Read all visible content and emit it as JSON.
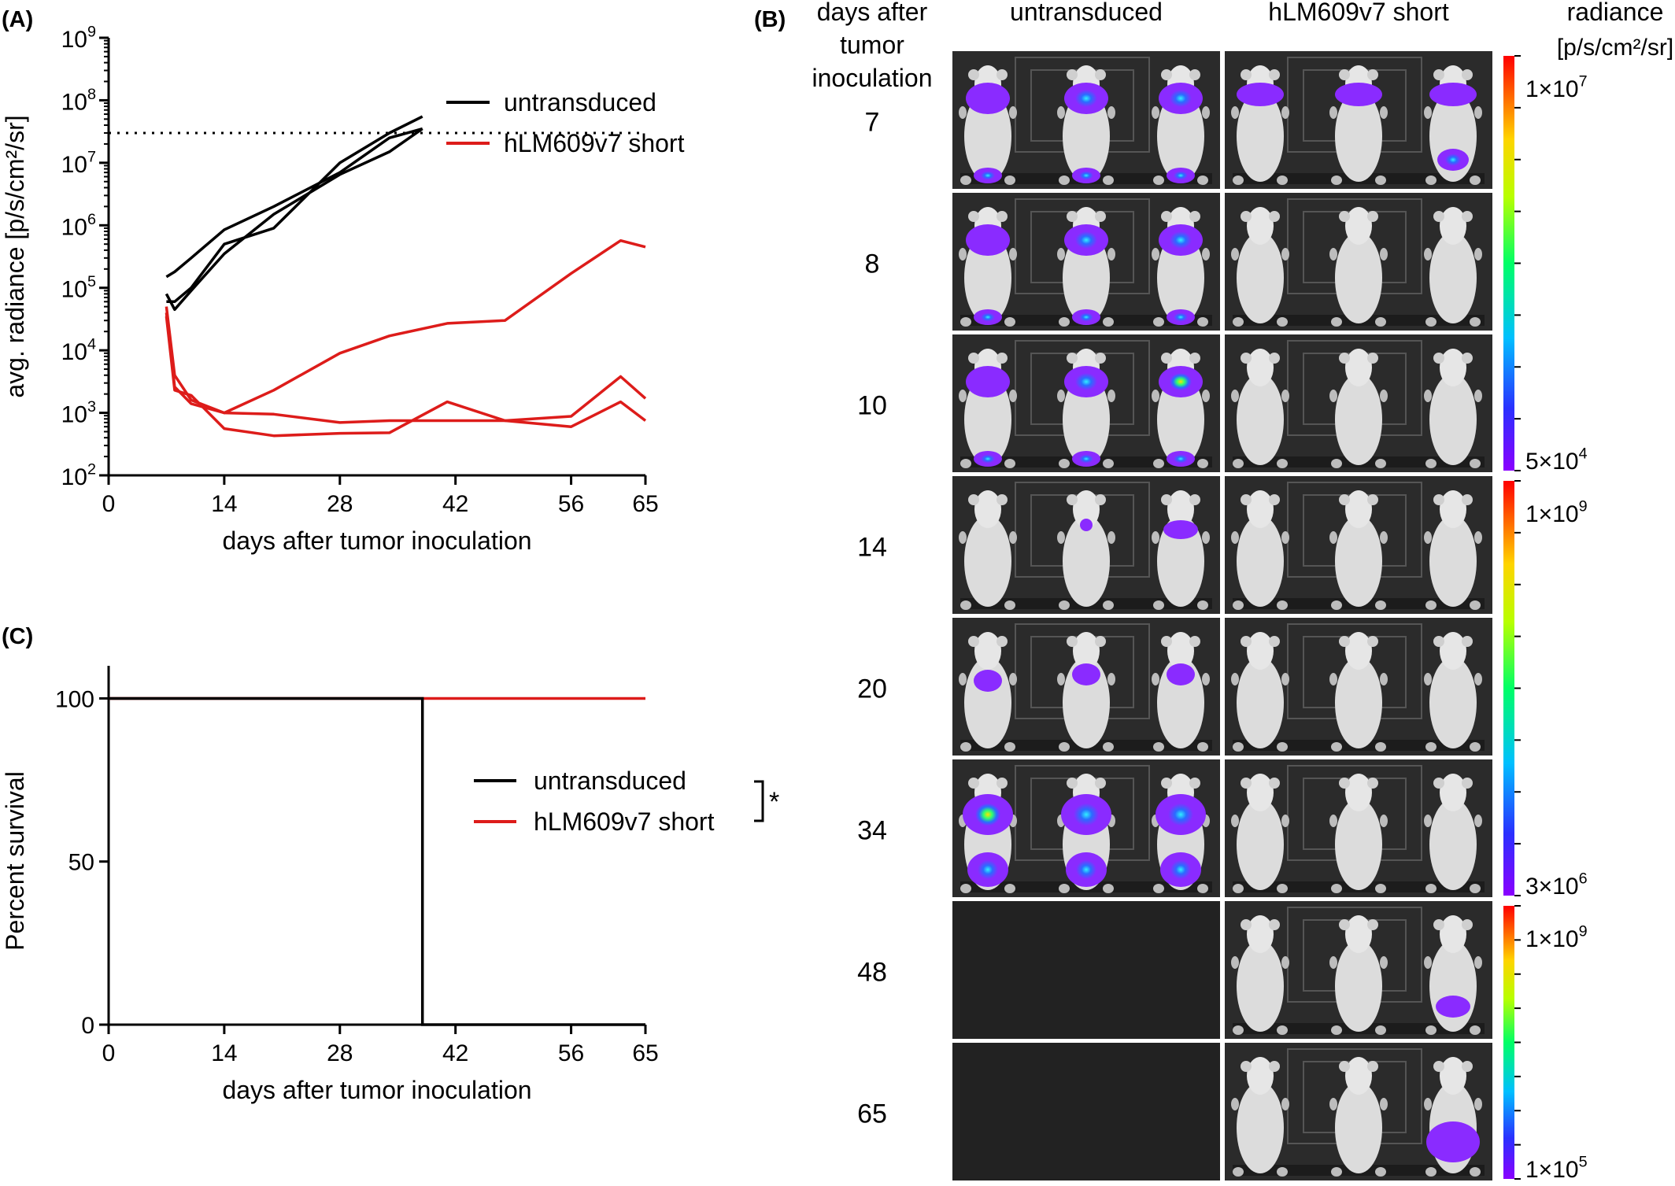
{
  "panels": {
    "a": "(A)",
    "b": "(B)",
    "c": "(C)"
  },
  "colors": {
    "untransduced": "#000000",
    "short": "#dd1c1a",
    "image_bg": "#222222",
    "frame": "#2b2b2b"
  },
  "chart_data": [
    {
      "type": "line",
      "panel": "(A)",
      "xlabel": "days after tumor inoculation",
      "ylabel": "avg. radiance  [p/s/cm²/sr]",
      "xticks": [
        "0",
        "14",
        "28",
        "42",
        "56",
        "65"
      ],
      "xlim": [
        0,
        65
      ],
      "yscale": "log",
      "ylim": [
        100,
        1000000000
      ],
      "yticks": [
        {
          "value": 100,
          "base": "10",
          "exp": "2"
        },
        {
          "value": 1000,
          "base": "10",
          "exp": "3"
        },
        {
          "value": 10000,
          "base": "10",
          "exp": "4"
        },
        {
          "value": 100000,
          "base": "10",
          "exp": "5"
        },
        {
          "value": 1000000,
          "base": "10",
          "exp": "6"
        },
        {
          "value": 10000000,
          "base": "10",
          "exp": "7"
        },
        {
          "value": 100000000,
          "base": "10",
          "exp": "8"
        },
        {
          "value": 1000000000,
          "base": "10",
          "exp": "9"
        }
      ],
      "threshold": 30000000,
      "legend": [
        {
          "label": "untransduced",
          "color": "#000000"
        },
        {
          "label": "hLM609v7 short",
          "color": "#dd1c1a"
        }
      ],
      "legend_position": "top-right",
      "series": [
        {
          "group": "untransduced",
          "color": "#000000",
          "points": [
            [
              7,
              80000
            ],
            [
              8,
              45000
            ],
            [
              10,
              90000
            ],
            [
              14,
              350000
            ],
            [
              20,
              1500000
            ],
            [
              28,
              6500000
            ],
            [
              34,
              15000000
            ],
            [
              38,
              35000000
            ]
          ]
        },
        {
          "group": "untransduced",
          "color": "#000000",
          "points": [
            [
              7,
              150000
            ],
            [
              8,
              180000
            ],
            [
              10,
              300000
            ],
            [
              14,
              850000
            ],
            [
              20,
              2000000
            ],
            [
              28,
              7000000
            ],
            [
              34,
              25000000
            ],
            [
              38,
              35000000
            ]
          ]
        },
        {
          "group": "untransduced",
          "color": "#000000",
          "points": [
            [
              7,
              60000
            ],
            [
              8,
              60000
            ],
            [
              10,
              100000
            ],
            [
              14,
              500000
            ],
            [
              20,
              900000
            ],
            [
              28,
              10000000
            ],
            [
              34,
              30000000
            ],
            [
              38,
              55000000
            ]
          ]
        },
        {
          "group": "hLM609v7 short",
          "color": "#dd1c1a",
          "points": [
            [
              7,
              50000
            ],
            [
              8,
              4000
            ],
            [
              10,
              1600
            ],
            [
              14,
              1000
            ],
            [
              20,
              2300
            ],
            [
              28,
              9000
            ],
            [
              34,
              17000
            ],
            [
              41,
              27000
            ],
            [
              48,
              30000
            ],
            [
              56,
              170000
            ],
            [
              62,
              570000
            ],
            [
              65,
              450000
            ]
          ]
        },
        {
          "group": "hLM609v7 short",
          "color": "#dd1c1a",
          "points": [
            [
              7,
              40000
            ],
            [
              8,
              2600
            ],
            [
              10,
              1400
            ],
            [
              14,
              1000
            ],
            [
              20,
              950
            ],
            [
              28,
              700
            ],
            [
              34,
              750
            ],
            [
              41,
              750
            ],
            [
              48,
              750
            ],
            [
              56,
              600
            ],
            [
              62,
              1500
            ],
            [
              65,
              750
            ]
          ]
        },
        {
          "group": "hLM609v7 short",
          "color": "#dd1c1a",
          "points": [
            [
              7,
              35000
            ],
            [
              8,
              2300
            ],
            [
              10,
              1900
            ],
            [
              14,
              560
            ],
            [
              20,
              430
            ],
            [
              28,
              470
            ],
            [
              34,
              480
            ],
            [
              41,
              1500
            ],
            [
              48,
              750
            ],
            [
              56,
              880
            ],
            [
              62,
              3800
            ],
            [
              65,
              1700
            ]
          ]
        }
      ]
    },
    {
      "type": "line",
      "panel": "(C)",
      "xlabel": "days after tumor inoculation",
      "ylabel": "Percent survival",
      "xticks": [
        "0",
        "14",
        "28",
        "42",
        "56",
        "65"
      ],
      "xlim": [
        0,
        65
      ],
      "yticks": [
        "0",
        "50",
        "100"
      ],
      "ylim": [
        0,
        110
      ],
      "legend": [
        {
          "label": "untransduced",
          "color": "#000000"
        },
        {
          "label": "hLM609v7 short",
          "color": "#dd1c1a"
        }
      ],
      "significance": "*",
      "series": [
        {
          "name": "untransduced",
          "color": "#000000",
          "points": [
            [
              0,
              100
            ],
            [
              38,
              100
            ],
            [
              38,
              0
            ],
            [
              65,
              0
            ]
          ]
        },
        {
          "name": "hLM609v7 short",
          "color": "#dd1c1a",
          "points": [
            [
              0,
              100
            ],
            [
              65,
              100
            ]
          ]
        }
      ]
    }
  ],
  "imaging": {
    "row_header": "days after\ntumor\ninoculation",
    "col_untransduced": "untransduced",
    "col_short": "hLM609v7 short",
    "colorbar_title": "radiance\n[p/s/cm²/sr]",
    "days": [
      "7",
      "8",
      "10",
      "14",
      "20",
      "34",
      "48",
      "65"
    ],
    "empty_after": "48",
    "colorbars": [
      {
        "rows": [
          "7",
          "8",
          "10"
        ],
        "max_label": "1×10",
        "max_exp": "7",
        "min_label": "5×10",
        "min_exp": "4"
      },
      {
        "rows": [
          "14",
          "20",
          "34"
        ],
        "max_label": "1×10",
        "max_exp": "9",
        "min_label": "3×10",
        "min_exp": "6"
      },
      {
        "rows": [
          "48",
          "65"
        ],
        "max_label": "1×10",
        "max_exp": "9",
        "min_label": "1×10",
        "min_exp": "5"
      }
    ]
  }
}
